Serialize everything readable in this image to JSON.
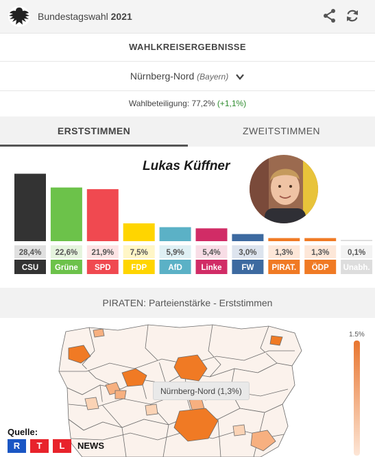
{
  "header": {
    "title_prefix": "Bundestagswahl",
    "title_year": "2021",
    "logo_icon": "eagle-icon",
    "share_icon": "share-icon",
    "refresh_icon": "refresh-icon"
  },
  "section_title": "WAHLKREISERGEBNISSE",
  "district": {
    "name": "Nürnberg-Nord",
    "state": "(Bayern)",
    "dropdown_icon": "chevron-down-icon"
  },
  "turnout": {
    "label": "Wahlbeteiligung: 77,2%",
    "delta": "(+1,1%)"
  },
  "tabs": [
    {
      "label": "ERSTSTIMMEN",
      "active": true
    },
    {
      "label": "ZWEITSTIMMEN",
      "active": false
    }
  ],
  "candidate": {
    "name": "Lukas Küffner"
  },
  "chart_data": {
    "type": "bar",
    "categories": [
      "CSU",
      "Grüne",
      "SPD",
      "FDP",
      "AfD",
      "Linke",
      "FW",
      "PIRAT.",
      "ÖDP",
      "Unabh."
    ],
    "values": [
      28.4,
      22.6,
      21.9,
      7.5,
      5.9,
      5.4,
      3.0,
      1.3,
      1.3,
      0.1
    ],
    "value_labels": [
      "28,4%",
      "22,6%",
      "21,9%",
      "7,5%",
      "5,9%",
      "5,4%",
      "3,0%",
      "1,3%",
      "1,3%",
      "0,1%"
    ],
    "colors": [
      "#333333",
      "#6cc24a",
      "#f04950",
      "#ffd500",
      "#5bb1c6",
      "#d12c66",
      "#3d6aa0",
      "#f07a24",
      "#f07a24",
      "#dddddd"
    ],
    "value_bg": [
      "#e0e0e0",
      "#e5f4dd",
      "#fde3e4",
      "#fff6c7",
      "#dff0f4",
      "#f8dde6",
      "#dde4ee",
      "#fde7d8",
      "#fde7d8",
      "#f3f3f3"
    ],
    "title": "",
    "ylim": [
      0,
      30
    ]
  },
  "map": {
    "header": "PIRATEN: Parteienstärke - Erststimmen",
    "legend_max": "1.5%",
    "tooltip": "Nürnberg-Nord (1,3%)"
  },
  "source": {
    "label": "Quelle:",
    "letters": [
      "R",
      "T",
      "L"
    ],
    "suffix": "NEWS",
    "colors": [
      "#1a56c4",
      "#e8232b",
      "#e8232b"
    ]
  }
}
